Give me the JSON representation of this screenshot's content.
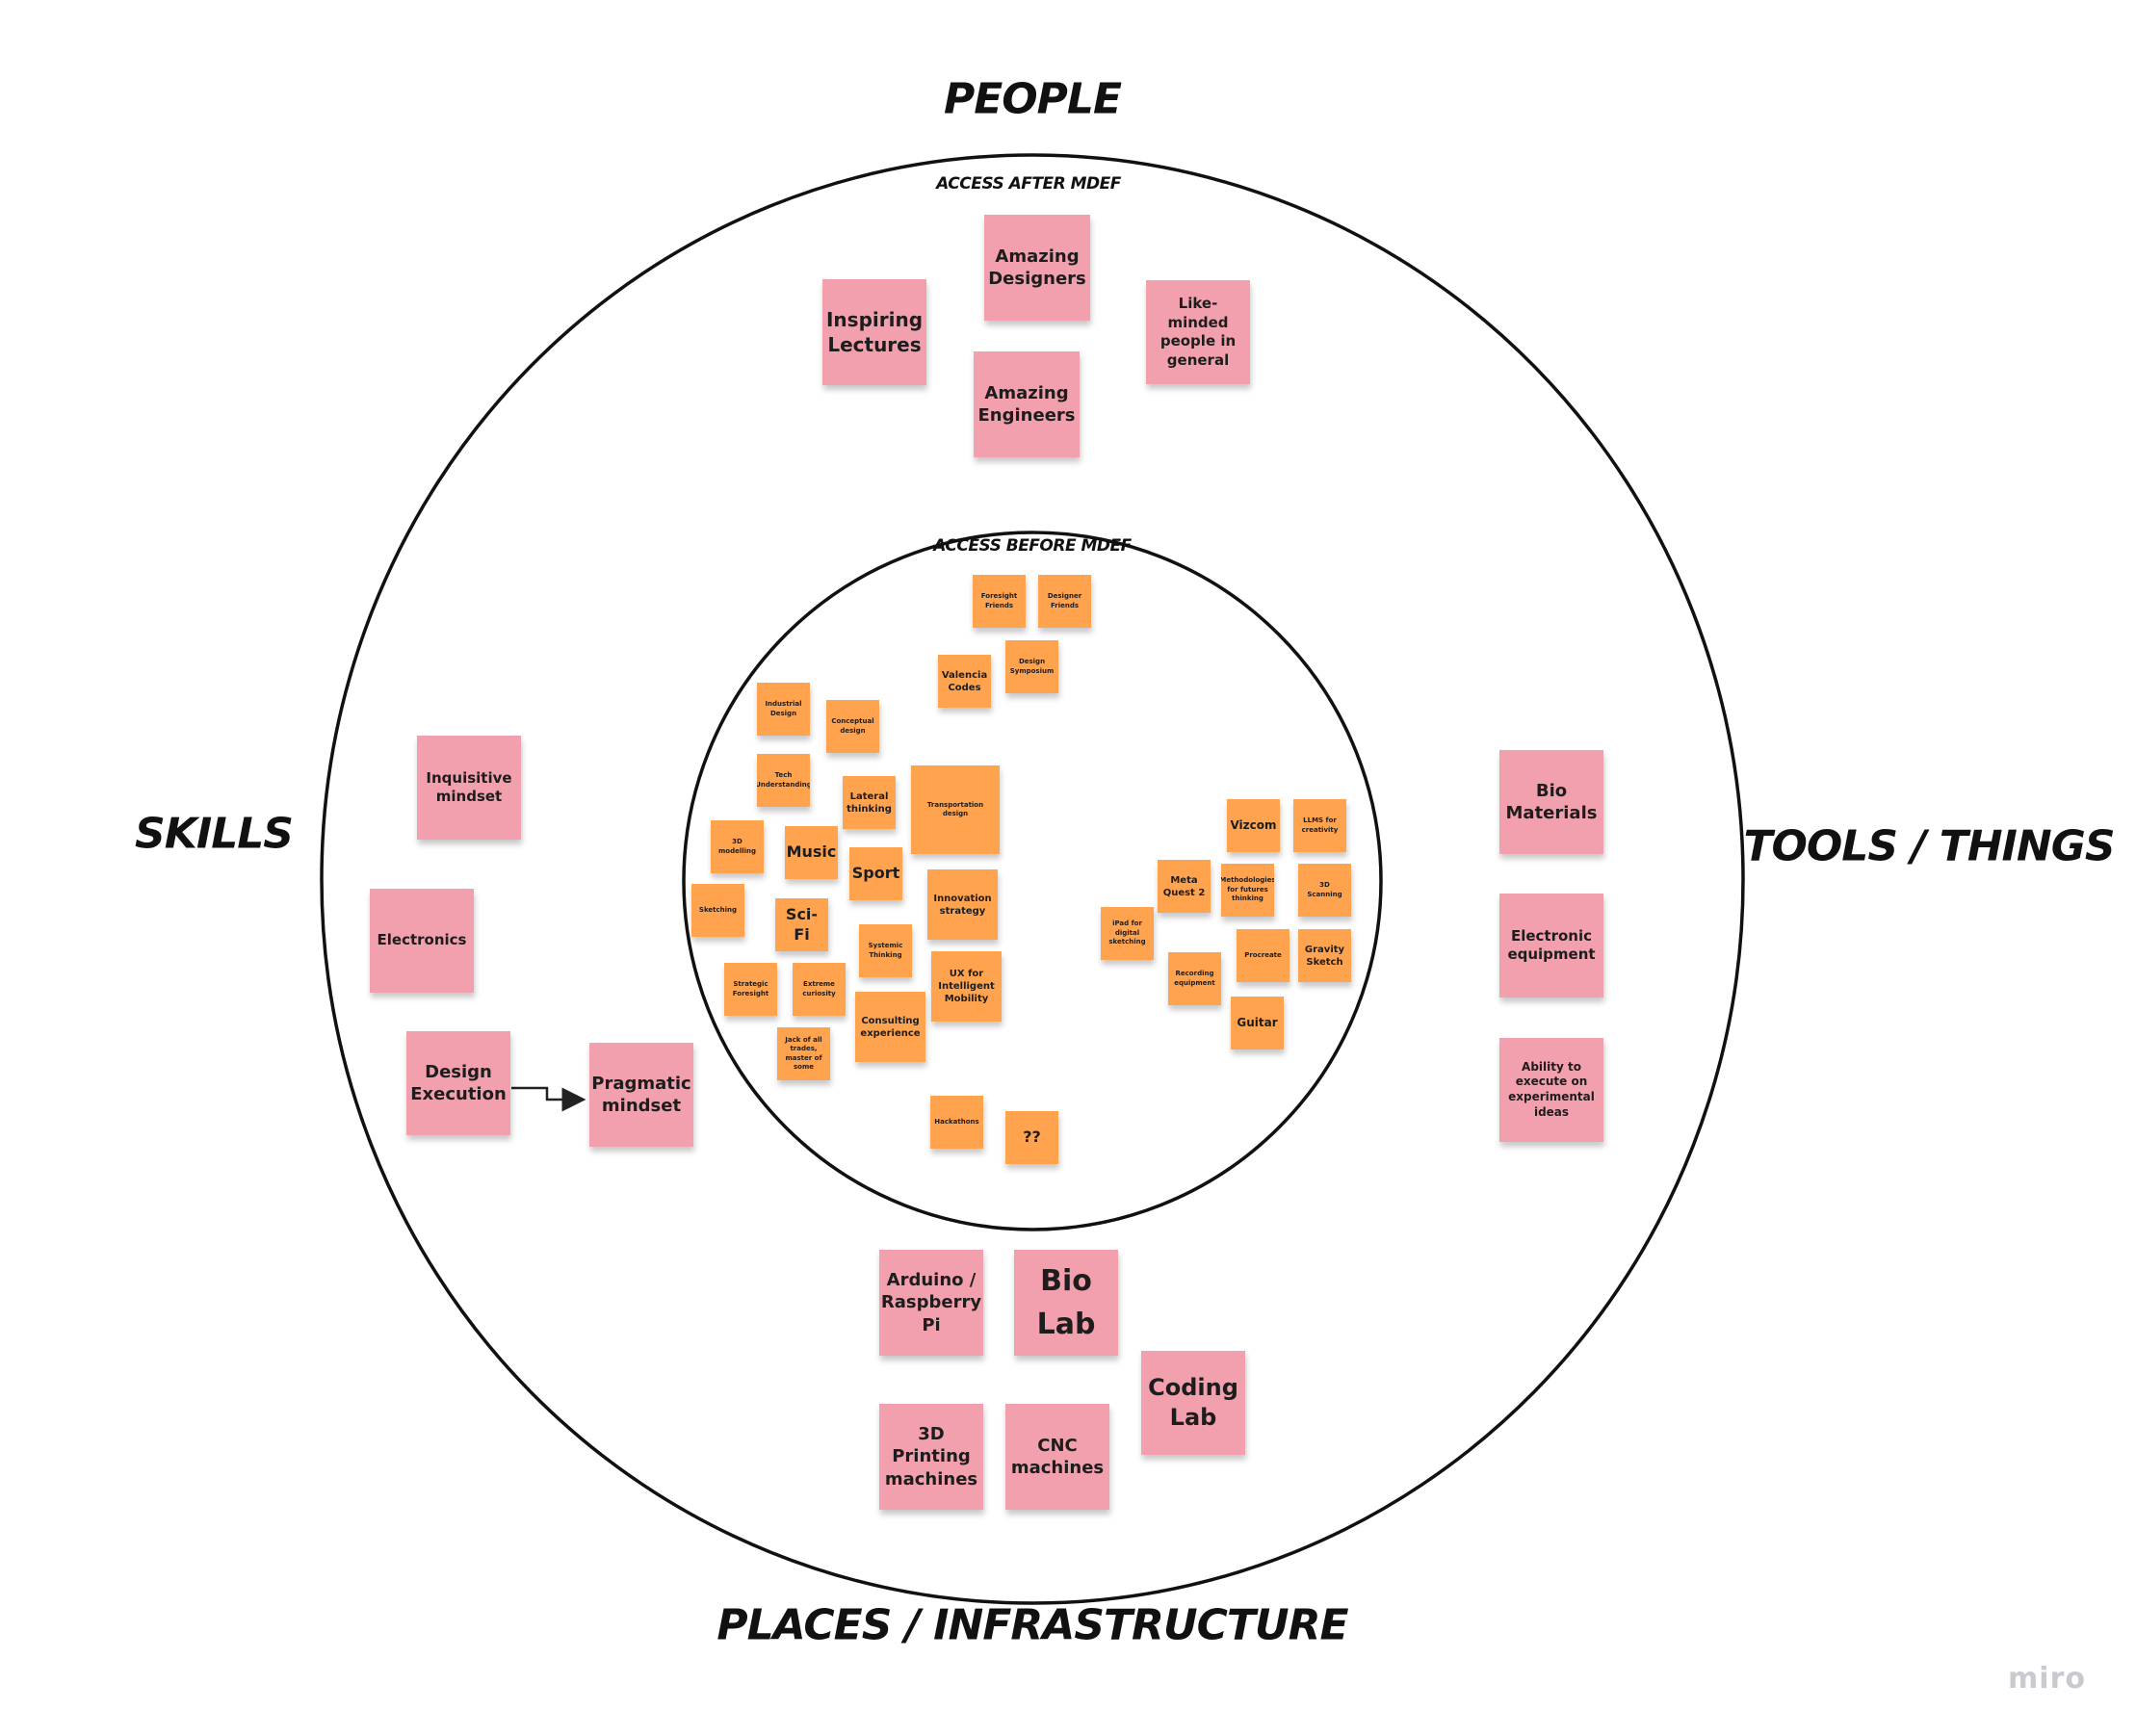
{
  "headings": {
    "people": "People",
    "skills": "Skills",
    "tools": "Tools / Things",
    "places": "Places / Infrastructure",
    "outer_ring": "Access after MDEF",
    "inner_ring": "Access before MDEF"
  },
  "outer_notes": {
    "inspiring_lectures": "Inspiring Lectures",
    "amazing_designers": "Amazing Designers",
    "amazing_engineers": "Amazing Engineers",
    "like_minded": "Like-minded people in general",
    "inquisitive_mindset": "Inquisitive mindset",
    "electronics": "Electronics",
    "design_execution": "Design Execution",
    "pragmatic_mindset": "Pragmatic mindset",
    "bio_materials": "Bio Materials",
    "electronic_equipment": "Electronic equipment",
    "ability_execute": "Ability to execute on experimental ideas",
    "arduino": "Arduino / Raspberry Pi",
    "bio_lab": "Bio Lab",
    "coding_lab": "Coding Lab",
    "printing_3d": "3D Printing machines",
    "cnc": "CNC machines"
  },
  "inner_notes": {
    "foresight_friends": "Foresight Friends",
    "designer_friends": "Designer Friends",
    "valencia_codes": "Valencia Codes",
    "design_symposium": "Design Symposium",
    "industrial_design": "Industrial Design",
    "conceptual_design": "Conceptual design",
    "tech_understanding": "Tech Understanding",
    "lateral_thinking": "Lateral thinking",
    "transportation_design": "Transportation design",
    "modelling_3d": "3D modelling",
    "music": "Music",
    "sport": "Sport",
    "sketching": "Sketching",
    "sci_fi": "Sci-Fi",
    "innovation_strategy": "Innovation strategy",
    "systemic_thinking": "Systemic Thinking",
    "strategic_foresight": "Strategic Foresight",
    "extreme_curiosity": "Extreme curiosity",
    "ux_mobility": "UX for Intelligent Mobility",
    "consulting": "Consulting experience",
    "jack_of_all_trades": "Jack of all trades, master of some",
    "hackathons": "Hackathons",
    "question_marks": "??",
    "vizcom": "Vizcom",
    "llms": "LLMS for creativity",
    "meta_quest": "Meta Quest 2",
    "methodologies": "Methodologies for futures thinking",
    "scanning_3d": "3D Scanning",
    "ipad": "iPad for digital sketching",
    "procreate": "Procreate",
    "gravity_sketch": "Gravity Sketch",
    "recording": "Recording equipment",
    "guitar": "Guitar"
  },
  "colors": {
    "outer_note": "#f2a0ad",
    "inner_note": "#ffa34f",
    "ring_stroke": "#111111"
  },
  "watermark": "miro"
}
